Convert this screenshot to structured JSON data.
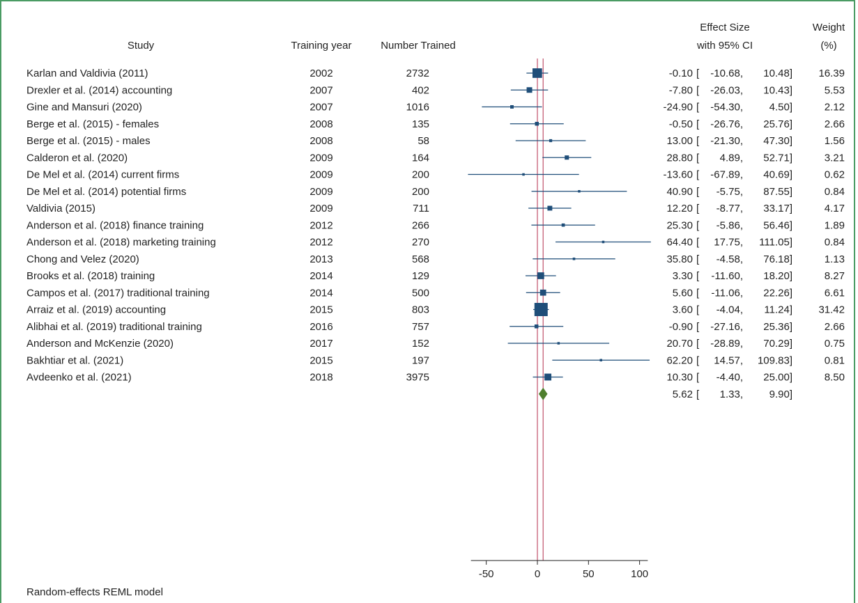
{
  "chart_data": {
    "type": "forest",
    "headers": {
      "study": "Study",
      "year": "Training year",
      "n": "Number Trained",
      "es_line1": "Effect Size",
      "es_line2": "with 95% CI",
      "w_line1": "Weight",
      "w_line2": "(%)"
    },
    "studies": [
      {
        "study": "Karlan and Valdivia (2011)",
        "year": "2002",
        "n": "2732",
        "es": -0.1,
        "lo": -10.68,
        "hi": 10.48,
        "es_text": "-0.10",
        "lo_text": "-10.68,",
        "hi_text": "10.48]",
        "weight": "16.39",
        "w": 16.39
      },
      {
        "study": "Drexler et al. (2014) accounting",
        "year": "2007",
        "n": "402",
        "es": -7.8,
        "lo": -26.03,
        "hi": 10.43,
        "es_text": "-7.80",
        "lo_text": "-26.03,",
        "hi_text": "10.43]",
        "weight": "5.53",
        "w": 5.53
      },
      {
        "study": "Gine and Mansuri (2020)",
        "year": "2007",
        "n": "1016",
        "es": -24.9,
        "lo": -54.3,
        "hi": 4.5,
        "es_text": "-24.90",
        "lo_text": "-54.30,",
        "hi_text": "4.50]",
        "weight": "2.12",
        "w": 2.12
      },
      {
        "study": "Berge et al. (2015) - females",
        "year": "2008",
        "n": "135",
        "es": -0.5,
        "lo": -26.76,
        "hi": 25.76,
        "es_text": "-0.50",
        "lo_text": "-26.76,",
        "hi_text": "25.76]",
        "weight": "2.66",
        "w": 2.66
      },
      {
        "study": "Berge et al. (2015) - males",
        "year": "2008",
        "n": "58",
        "es": 13.0,
        "lo": -21.3,
        "hi": 47.3,
        "es_text": "13.00",
        "lo_text": "-21.30,",
        "hi_text": "47.30]",
        "weight": "1.56",
        "w": 1.56
      },
      {
        "study": "Calderon et al. (2020)",
        "year": "2009",
        "n": "164",
        "es": 28.8,
        "lo": 4.89,
        "hi": 52.71,
        "es_text": "28.80",
        "lo_text": "4.89,",
        "hi_text": "52.71]",
        "weight": "3.21",
        "w": 3.21
      },
      {
        "study": "De Mel et al. (2014) current firms",
        "year": "2009",
        "n": "200",
        "es": -13.6,
        "lo": -67.89,
        "hi": 40.69,
        "es_text": "-13.60",
        "lo_text": "-67.89,",
        "hi_text": "40.69]",
        "weight": "0.62",
        "w": 0.62
      },
      {
        "study": "De Mel et al. (2014) potential firms",
        "year": "2009",
        "n": "200",
        "es": 40.9,
        "lo": -5.75,
        "hi": 87.55,
        "es_text": "40.90",
        "lo_text": "-5.75,",
        "hi_text": "87.55]",
        "weight": "0.84",
        "w": 0.84
      },
      {
        "study": "Valdivia (2015)",
        "year": "2009",
        "n": "711",
        "es": 12.2,
        "lo": -8.77,
        "hi": 33.17,
        "es_text": "12.20",
        "lo_text": "-8.77,",
        "hi_text": "33.17]",
        "weight": "4.17",
        "w": 4.17
      },
      {
        "study": "Anderson et al. (2018) finance training",
        "year": "2012",
        "n": "266",
        "es": 25.3,
        "lo": -5.86,
        "hi": 56.46,
        "es_text": "25.30",
        "lo_text": "-5.86,",
        "hi_text": "56.46]",
        "weight": "1.89",
        "w": 1.89
      },
      {
        "study": "Anderson et al. (2018) marketing training",
        "year": "2012",
        "n": "270",
        "es": 64.4,
        "lo": 17.75,
        "hi": 111.05,
        "es_text": "64.40",
        "lo_text": "17.75,",
        "hi_text": "111.05]",
        "weight": "0.84",
        "w": 0.84
      },
      {
        "study": "Chong and Velez (2020)",
        "year": "2013",
        "n": "568",
        "es": 35.8,
        "lo": -4.58,
        "hi": 76.18,
        "es_text": "35.80",
        "lo_text": "-4.58,",
        "hi_text": "76.18]",
        "weight": "1.13",
        "w": 1.13
      },
      {
        "study": "Brooks et al. (2018) training",
        "year": "2014",
        "n": "129",
        "es": 3.3,
        "lo": -11.6,
        "hi": 18.2,
        "es_text": "3.30",
        "lo_text": "-11.60,",
        "hi_text": "18.20]",
        "weight": "8.27",
        "w": 8.27
      },
      {
        "study": "Campos et al. (2017) traditional training",
        "year": "2014",
        "n": "500",
        "es": 5.6,
        "lo": -11.06,
        "hi": 22.26,
        "es_text": "5.60",
        "lo_text": "-11.06,",
        "hi_text": "22.26]",
        "weight": "6.61",
        "w": 6.61
      },
      {
        "study": "Arraiz et al. (2019) accounting",
        "year": "2015",
        "n": "803",
        "es": 3.6,
        "lo": -4.04,
        "hi": 11.24,
        "es_text": "3.60",
        "lo_text": "-4.04,",
        "hi_text": "11.24]",
        "weight": "31.42",
        "w": 31.42
      },
      {
        "study": "Alibhai et al. (2019) traditional training",
        "year": "2016",
        "n": "757",
        "es": -0.9,
        "lo": -27.16,
        "hi": 25.36,
        "es_text": "-0.90",
        "lo_text": "-27.16,",
        "hi_text": "25.36]",
        "weight": "2.66",
        "w": 2.66
      },
      {
        "study": "Anderson and McKenzie (2020)",
        "year": "2017",
        "n": "152",
        "es": 20.7,
        "lo": -28.89,
        "hi": 70.29,
        "es_text": "20.70",
        "lo_text": "-28.89,",
        "hi_text": "70.29]",
        "weight": "0.75",
        "w": 0.75
      },
      {
        "study": "Bakhtiar et al. (2021)",
        "year": "2015",
        "n": "197",
        "es": 62.2,
        "lo": 14.57,
        "hi": 109.83,
        "es_text": "62.20",
        "lo_text": "14.57,",
        "hi_text": "109.83]",
        "weight": "0.81",
        "w": 0.81
      },
      {
        "study": "Avdeenko et al. (2021)",
        "year": "2018",
        "n": "3975",
        "es": 10.3,
        "lo": -4.4,
        "hi": 25.0,
        "es_text": "10.30",
        "lo_text": "-4.40,",
        "hi_text": "25.00]",
        "weight": "8.50",
        "w": 8.5
      }
    ],
    "overall": {
      "es": 5.62,
      "lo": 1.33,
      "hi": 9.9,
      "es_text": "5.62",
      "lo_text": "1.33,",
      "hi_text": "9.90]"
    },
    "bracket_open": "[",
    "x_ticks": [
      -50,
      0,
      50,
      100
    ],
    "x_tick_labels": [
      "-50",
      "0",
      "50",
      "100"
    ],
    "xlim": [
      -65,
      108
    ],
    "null_line": 0,
    "footnote": "Random-effects REML model",
    "colors": {
      "marker": "#1f4e79",
      "ci_line": "#1f4e79",
      "diamond": "#4f7f2e",
      "null_line": "#c0506a",
      "overall_line": "#c0506a",
      "frame": "#4a9b63"
    }
  }
}
